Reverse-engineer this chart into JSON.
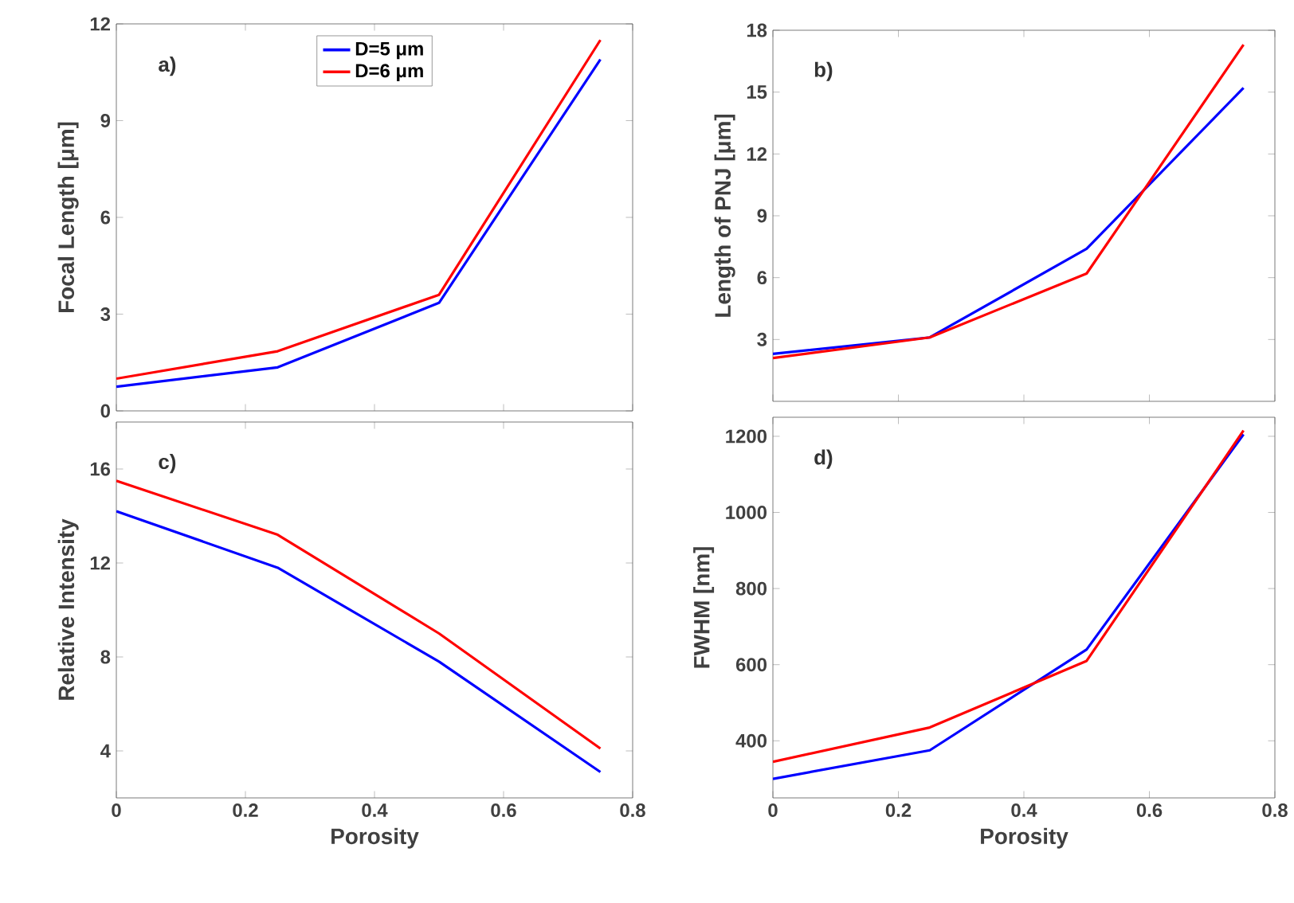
{
  "chart_data": [
    {
      "type": "line",
      "annotations": [
        "a)"
      ],
      "ylabel": "Focal Length [μm]",
      "x": [
        0,
        0.25,
        0.5,
        0.75
      ],
      "xlim": [
        0,
        0.8
      ],
      "xticks": [
        0,
        0.2,
        0.4,
        0.6,
        0.8
      ],
      "ylim": [
        0,
        12
      ],
      "yticks": [
        0,
        3,
        6,
        9,
        12
      ],
      "tick_labels": "y",
      "legend": "top",
      "series": [
        {
          "name": "D=5 μm",
          "color": "#0000ff",
          "values": [
            0.75,
            1.35,
            3.35,
            10.9
          ]
        },
        {
          "name": "D=6 μm",
          "color": "#ff0000",
          "values": [
            1.0,
            1.85,
            3.6,
            11.5
          ]
        }
      ]
    },
    {
      "type": "line",
      "annotations": [
        "b)"
      ],
      "ylabel": "Length of PNJ [μm]",
      "x": [
        0,
        0.25,
        0.5,
        0.75
      ],
      "xlim": [
        0,
        0.8
      ],
      "xticks": [
        0,
        0.2,
        0.4,
        0.6,
        0.8
      ],
      "ylim": [
        0,
        18
      ],
      "yticks": [
        3,
        6,
        9,
        12,
        15,
        18
      ],
      "tick_labels": "y",
      "series": [
        {
          "color": "#0000ff",
          "values": [
            2.3,
            3.1,
            7.4,
            15.2
          ]
        },
        {
          "color": "#ff0000",
          "values": [
            2.1,
            3.1,
            6.2,
            17.3
          ]
        }
      ]
    },
    {
      "type": "line",
      "annotations": [
        "c)"
      ],
      "ylabel": "Relative Intensity",
      "xlabel": "Porosity",
      "x": [
        0,
        0.25,
        0.5,
        0.75
      ],
      "xlim": [
        0,
        0.8
      ],
      "xticks": [
        0,
        0.2,
        0.4,
        0.6,
        0.8
      ],
      "ylim": [
        2,
        18
      ],
      "yticks": [
        4,
        8,
        12,
        16
      ],
      "series": [
        {
          "color": "#0000ff",
          "values": [
            14.2,
            11.8,
            7.8,
            3.1
          ]
        },
        {
          "color": "#ff0000",
          "values": [
            15.5,
            13.2,
            9.0,
            4.1
          ]
        }
      ]
    },
    {
      "type": "line",
      "annotations": [
        "d)"
      ],
      "ylabel": "FWHM [nm]",
      "xlabel": "Porosity",
      "x": [
        0,
        0.25,
        0.5,
        0.75
      ],
      "xlim": [
        0,
        0.8
      ],
      "xticks": [
        0,
        0.2,
        0.4,
        0.6,
        0.8
      ],
      "ylim": [
        250,
        1250
      ],
      "yticks": [
        400,
        600,
        800,
        1000,
        1200
      ],
      "series": [
        {
          "color": "#0000ff",
          "values": [
            300,
            375,
            640,
            1205
          ]
        },
        {
          "color": "#ff0000",
          "values": [
            345,
            435,
            610,
            1215
          ]
        }
      ]
    }
  ]
}
